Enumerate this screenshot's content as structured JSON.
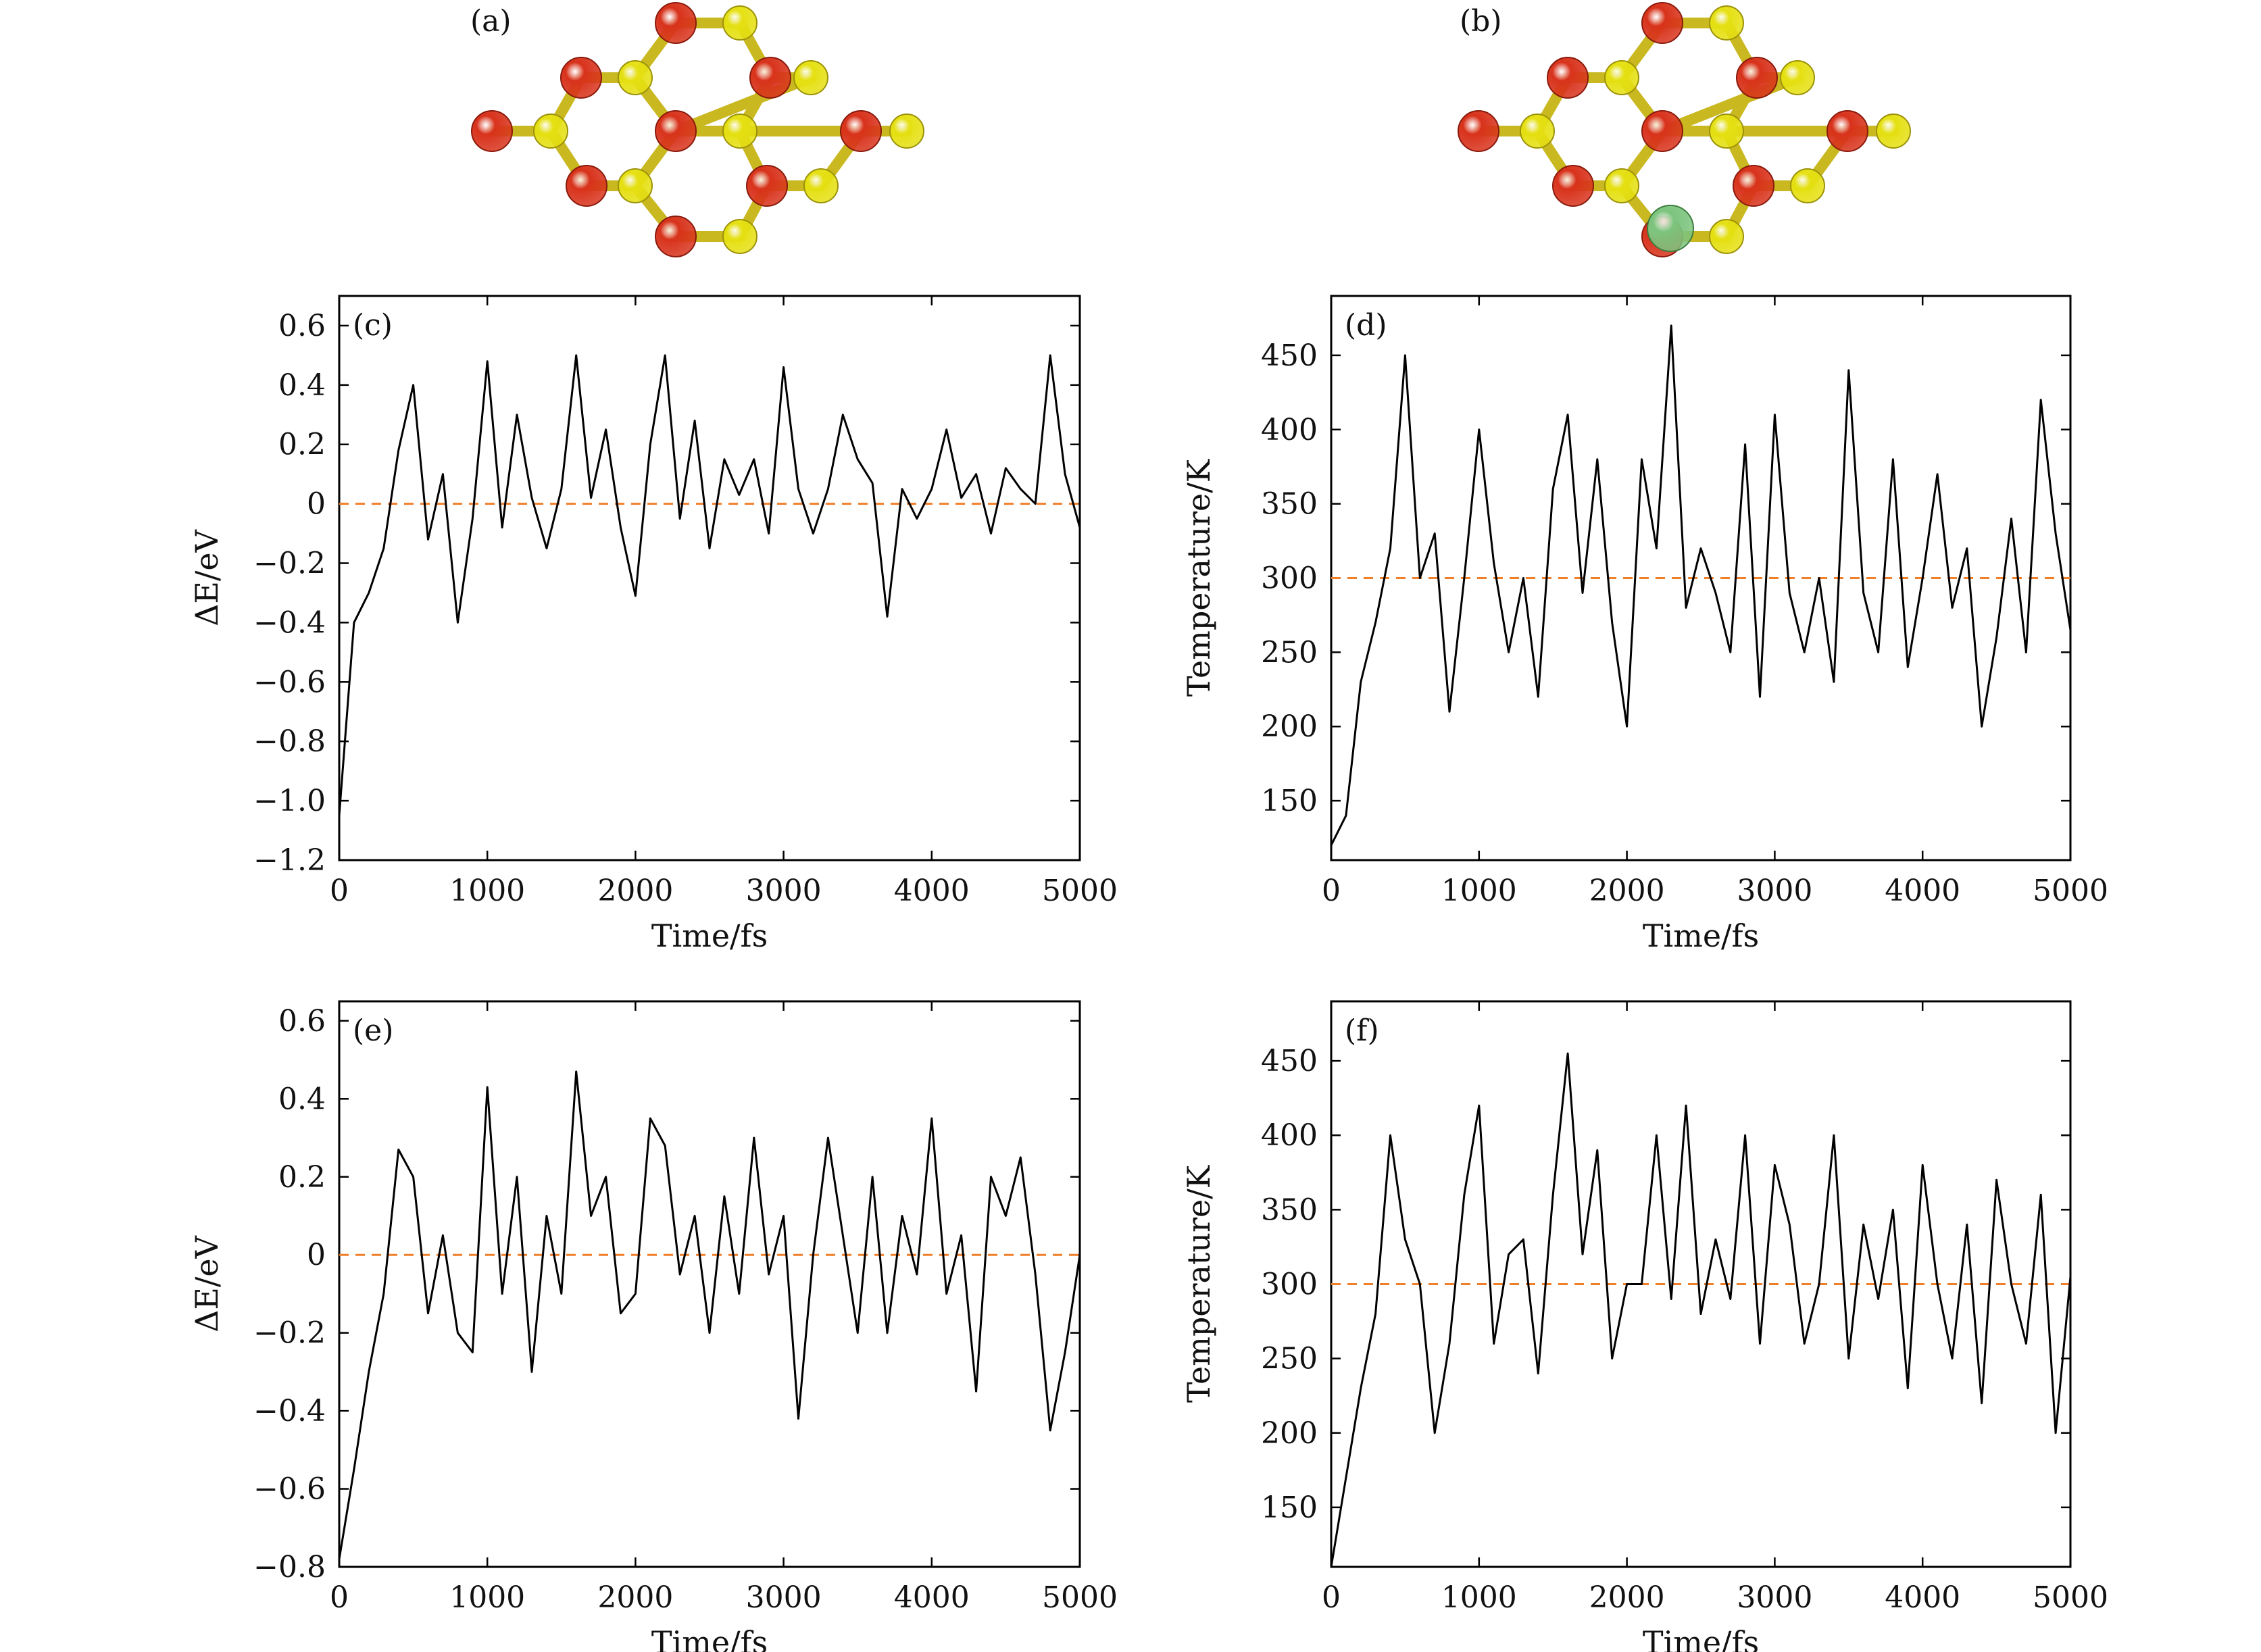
{
  "molecules": [
    {
      "label": "(a)",
      "atoms": {
        "metal": "#d8321b",
        "chalcogen": "#e5e012",
        "dopant": null
      }
    },
    {
      "label": "(b)",
      "atoms": {
        "metal": "#d8321b",
        "chalcogen": "#e5e012",
        "dopant": "#7cc47e"
      }
    }
  ],
  "colors": {
    "line": "#000000",
    "reference": "#f07f2a",
    "axis": "#000000"
  },
  "chart_data": [
    {
      "type": "line",
      "panel": "(c)",
      "xlabel": "Time/fs",
      "ylabel": "ΔE/eV",
      "xlim": [
        0,
        5000
      ],
      "ylim": [
        -1.2,
        0.7
      ],
      "xticks": [
        0,
        1000,
        2000,
        3000,
        4000,
        5000
      ],
      "yticks": [
        -1.2,
        -1.0,
        -0.8,
        -0.6,
        -0.4,
        -0.2,
        0,
        0.2,
        0.4,
        0.6
      ],
      "ytick_labels": [
        "−1.2",
        "−1.0",
        "−0.8",
        "−0.6",
        "−0.4",
        "−0.2",
        "0",
        "0.2",
        "0.4",
        "0.6"
      ],
      "reference_y": 0,
      "series": [
        {
          "x": [
            0,
            100,
            200,
            300,
            400,
            500,
            600,
            700,
            800,
            900,
            1000,
            1100,
            1200,
            1300,
            1400,
            1500,
            1600,
            1700,
            1800,
            1900,
            2000,
            2100,
            2200,
            2300,
            2400,
            2500,
            2600,
            2700,
            2800,
            2900,
            3000,
            3100,
            3200,
            3300,
            3400,
            3500,
            3600,
            3700,
            3800,
            3900,
            4000,
            4100,
            4200,
            4300,
            4400,
            4500,
            4600,
            4700,
            4800,
            4900,
            5000
          ],
          "y": [
            -1.05,
            -0.4,
            -0.3,
            -0.15,
            0.18,
            0.4,
            -0.12,
            0.1,
            -0.4,
            -0.05,
            0.48,
            -0.08,
            0.3,
            0.02,
            -0.15,
            0.05,
            0.5,
            0.02,
            0.25,
            -0.08,
            -0.31,
            0.2,
            0.5,
            -0.05,
            0.28,
            -0.15,
            0.15,
            0.03,
            0.15,
            -0.1,
            0.46,
            0.05,
            -0.1,
            0.05,
            0.3,
            0.15,
            0.07,
            -0.38,
            0.05,
            -0.05,
            0.05,
            0.25,
            0.02,
            0.1,
            -0.1,
            0.12,
            0.05,
            0.0,
            0.5,
            0.1,
            -0.08
          ]
        }
      ]
    },
    {
      "type": "line",
      "panel": "(d)",
      "xlabel": "Time/fs",
      "ylabel": "Temperature/K",
      "xlim": [
        0,
        5000
      ],
      "ylim": [
        110,
        490
      ],
      "xticks": [
        0,
        1000,
        2000,
        3000,
        4000,
        5000
      ],
      "yticks": [
        150,
        200,
        250,
        300,
        350,
        400,
        450
      ],
      "ytick_labels": [
        "150",
        "200",
        "250",
        "300",
        "350",
        "400",
        "450"
      ],
      "reference_y": 300,
      "series": [
        {
          "x": [
            0,
            100,
            200,
            300,
            400,
            500,
            600,
            700,
            800,
            900,
            1000,
            1100,
            1200,
            1300,
            1400,
            1500,
            1600,
            1700,
            1800,
            1900,
            2000,
            2100,
            2200,
            2300,
            2400,
            2500,
            2600,
            2700,
            2800,
            2900,
            3000,
            3100,
            3200,
            3300,
            3400,
            3500,
            3600,
            3700,
            3800,
            3900,
            4000,
            4100,
            4200,
            4300,
            4400,
            4500,
            4600,
            4700,
            4800,
            4900,
            5000
          ],
          "y": [
            120,
            140,
            230,
            270,
            320,
            450,
            300,
            330,
            210,
            300,
            400,
            310,
            250,
            300,
            220,
            360,
            410,
            290,
            380,
            270,
            200,
            380,
            320,
            470,
            280,
            320,
            290,
            250,
            390,
            220,
            410,
            290,
            250,
            300,
            230,
            440,
            290,
            250,
            380,
            240,
            300,
            370,
            280,
            320,
            200,
            260,
            340,
            250,
            420,
            330,
            265
          ]
        }
      ]
    },
    {
      "type": "line",
      "panel": "(e)",
      "xlabel": "Time/fs",
      "ylabel": "ΔE/eV",
      "xlim": [
        0,
        5000
      ],
      "ylim": [
        -0.8,
        0.65
      ],
      "xticks": [
        0,
        1000,
        2000,
        3000,
        4000,
        5000
      ],
      "yticks": [
        -0.8,
        -0.6,
        -0.4,
        -0.2,
        0,
        0.2,
        0.4,
        0.6
      ],
      "ytick_labels": [
        "−0.8",
        "−0.6",
        "−0.4",
        "−0.2",
        "0",
        "0.2",
        "0.4",
        "0.6"
      ],
      "reference_y": 0,
      "series": [
        {
          "x": [
            0,
            100,
            200,
            300,
            400,
            500,
            600,
            700,
            800,
            900,
            1000,
            1100,
            1200,
            1300,
            1400,
            1500,
            1600,
            1700,
            1800,
            1900,
            2000,
            2100,
            2200,
            2300,
            2400,
            2500,
            2600,
            2700,
            2800,
            2900,
            3000,
            3100,
            3200,
            3300,
            3400,
            3500,
            3600,
            3700,
            3800,
            3900,
            4000,
            4100,
            4200,
            4300,
            4400,
            4500,
            4600,
            4700,
            4800,
            4900,
            5000
          ],
          "y": [
            -0.78,
            -0.55,
            -0.3,
            -0.1,
            0.27,
            0.2,
            -0.15,
            0.05,
            -0.2,
            -0.25,
            0.43,
            -0.1,
            0.2,
            -0.3,
            0.1,
            -0.1,
            0.47,
            0.1,
            0.2,
            -0.15,
            -0.1,
            0.35,
            0.28,
            -0.05,
            0.1,
            -0.2,
            0.15,
            -0.1,
            0.3,
            -0.05,
            0.1,
            -0.42,
            0.0,
            0.3,
            0.05,
            -0.2,
            0.2,
            -0.2,
            0.1,
            -0.05,
            0.35,
            -0.1,
            0.05,
            -0.35,
            0.2,
            0.1,
            0.25,
            -0.05,
            -0.45,
            -0.25,
            0.0
          ]
        }
      ]
    },
    {
      "type": "line",
      "panel": "(f)",
      "xlabel": "Time/fs",
      "ylabel": "Temperature/K",
      "xlim": [
        0,
        5000
      ],
      "ylim": [
        110,
        490
      ],
      "xticks": [
        0,
        1000,
        2000,
        3000,
        4000,
        5000
      ],
      "yticks": [
        150,
        200,
        250,
        300,
        350,
        400,
        450
      ],
      "ytick_labels": [
        "150",
        "200",
        "250",
        "300",
        "350",
        "400",
        "450"
      ],
      "reference_y": 300,
      "series": [
        {
          "x": [
            0,
            100,
            200,
            300,
            400,
            500,
            600,
            700,
            800,
            900,
            1000,
            1100,
            1200,
            1300,
            1400,
            1500,
            1600,
            1700,
            1800,
            1900,
            2000,
            2100,
            2200,
            2300,
            2400,
            2500,
            2600,
            2700,
            2800,
            2900,
            3000,
            3100,
            3200,
            3300,
            3400,
            3500,
            3600,
            3700,
            3800,
            3900,
            4000,
            4100,
            4200,
            4300,
            4400,
            4500,
            4600,
            4700,
            4800,
            4900,
            5000
          ],
          "y": [
            110,
            170,
            230,
            280,
            400,
            330,
            300,
            200,
            260,
            360,
            420,
            260,
            320,
            330,
            240,
            360,
            455,
            320,
            390,
            250,
            300,
            300,
            400,
            290,
            420,
            280,
            330,
            290,
            400,
            260,
            380,
            340,
            260,
            300,
            400,
            250,
            340,
            290,
            350,
            230,
            380,
            300,
            250,
            340,
            220,
            370,
            300,
            260,
            360,
            200,
            305
          ]
        }
      ]
    }
  ]
}
